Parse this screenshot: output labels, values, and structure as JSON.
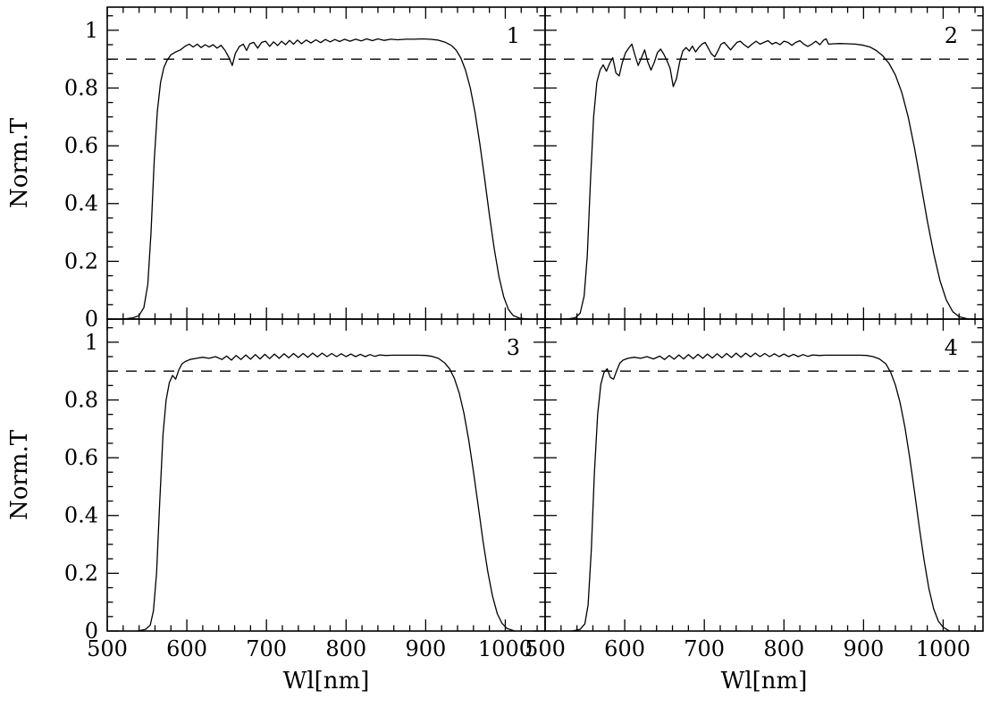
{
  "figure": {
    "background": "#ffffff",
    "axis_color": "#000000",
    "curve_color": "#000000",
    "dashed_color": "#000000",
    "xlabel": "Wl[nm]",
    "ylabel": "Norm.T"
  },
  "axes": {
    "xlim": [
      500,
      1050
    ],
    "ylim": [
      0,
      1.08
    ],
    "x_major_ticks": [
      500,
      600,
      700,
      800,
      900,
      1000
    ],
    "x_tick_labels": [
      "500",
      "600",
      "700",
      "800",
      "900",
      "1000"
    ],
    "x_minor_step": 20,
    "y_major_ticks": [
      0,
      0.2,
      0.4,
      0.6,
      0.8,
      1
    ],
    "y_tick_labels": [
      "0",
      "0.2",
      "0.4",
      "0.6",
      "0.8",
      "1"
    ],
    "y_minor_step": 0.05,
    "grid": false
  },
  "chart_data": [
    {
      "type": "line",
      "panel_label": "1",
      "row": 0,
      "col": 0,
      "xlabel": "Wl[nm]",
      "ylabel": "Norm.T",
      "xlim": [
        500,
        1050
      ],
      "ylim": [
        0,
        1.08
      ],
      "dashed_line_y": 0.9,
      "points": [
        [
          520,
          0
        ],
        [
          532,
          0.004
        ],
        [
          540,
          0.012
        ],
        [
          546,
          0.04
        ],
        [
          551,
          0.12
        ],
        [
          555,
          0.3
        ],
        [
          559,
          0.55
        ],
        [
          563,
          0.72
        ],
        [
          567,
          0.82
        ],
        [
          571,
          0.87
        ],
        [
          575,
          0.895
        ],
        [
          580,
          0.915
        ],
        [
          586,
          0.925
        ],
        [
          592,
          0.932
        ],
        [
          598,
          0.945
        ],
        [
          603,
          0.952
        ],
        [
          608,
          0.942
        ],
        [
          613,
          0.952
        ],
        [
          618,
          0.94
        ],
        [
          623,
          0.95
        ],
        [
          628,
          0.942
        ],
        [
          633,
          0.95
        ],
        [
          638,
          0.938
        ],
        [
          643,
          0.948
        ],
        [
          648,
          0.93
        ],
        [
          653,
          0.905
        ],
        [
          657,
          0.878
        ],
        [
          661,
          0.92
        ],
        [
          666,
          0.944
        ],
        [
          671,
          0.952
        ],
        [
          675,
          0.93
        ],
        [
          679,
          0.953
        ],
        [
          684,
          0.958
        ],
        [
          689,
          0.938
        ],
        [
          694,
          0.958
        ],
        [
          699,
          0.962
        ],
        [
          704,
          0.944
        ],
        [
          709,
          0.96
        ],
        [
          714,
          0.947
        ],
        [
          719,
          0.962
        ],
        [
          724,
          0.95
        ],
        [
          729,
          0.965
        ],
        [
          734,
          0.952
        ],
        [
          739,
          0.966
        ],
        [
          744,
          0.953
        ],
        [
          750,
          0.966
        ],
        [
          756,
          0.956
        ],
        [
          762,
          0.967
        ],
        [
          768,
          0.957
        ],
        [
          774,
          0.968
        ],
        [
          780,
          0.96
        ],
        [
          786,
          0.968
        ],
        [
          792,
          0.961
        ],
        [
          798,
          0.969
        ],
        [
          805,
          0.962
        ],
        [
          812,
          0.969
        ],
        [
          819,
          0.963
        ],
        [
          826,
          0.97
        ],
        [
          833,
          0.964
        ],
        [
          840,
          0.97
        ],
        [
          848,
          0.965
        ],
        [
          856,
          0.969
        ],
        [
          865,
          0.967
        ],
        [
          875,
          0.969
        ],
        [
          885,
          0.969
        ],
        [
          895,
          0.97
        ],
        [
          905,
          0.969
        ],
        [
          915,
          0.966
        ],
        [
          925,
          0.958
        ],
        [
          932,
          0.948
        ],
        [
          938,
          0.932
        ],
        [
          944,
          0.905
        ],
        [
          950,
          0.862
        ],
        [
          956,
          0.8
        ],
        [
          962,
          0.715
        ],
        [
          968,
          0.608
        ],
        [
          974,
          0.487
        ],
        [
          980,
          0.362
        ],
        [
          986,
          0.245
        ],
        [
          992,
          0.148
        ],
        [
          998,
          0.077
        ],
        [
          1004,
          0.033
        ],
        [
          1010,
          0.012
        ],
        [
          1018,
          0.003
        ],
        [
          1030,
          0
        ]
      ]
    },
    {
      "type": "line",
      "panel_label": "2",
      "row": 0,
      "col": 1,
      "xlabel": "Wl[nm]",
      "ylabel": "Norm.T",
      "xlim": [
        500,
        1050
      ],
      "ylim": [
        0,
        1.08
      ],
      "dashed_line_y": 0.9,
      "points": [
        [
          528,
          0
        ],
        [
          538,
          0.005
        ],
        [
          544,
          0.02
        ],
        [
          549,
          0.08
        ],
        [
          553,
          0.22
        ],
        [
          557,
          0.48
        ],
        [
          561,
          0.7
        ],
        [
          565,
          0.82
        ],
        [
          569,
          0.862
        ],
        [
          573,
          0.88
        ],
        [
          577,
          0.858
        ],
        [
          581,
          0.885
        ],
        [
          585,
          0.905
        ],
        [
          589,
          0.852
        ],
        [
          593,
          0.842
        ],
        [
          597,
          0.888
        ],
        [
          601,
          0.922
        ],
        [
          605,
          0.938
        ],
        [
          609,
          0.952
        ],
        [
          613,
          0.912
        ],
        [
          617,
          0.878
        ],
        [
          621,
          0.905
        ],
        [
          625,
          0.932
        ],
        [
          629,
          0.89
        ],
        [
          633,
          0.862
        ],
        [
          637,
          0.888
        ],
        [
          641,
          0.922
        ],
        [
          645,
          0.935
        ],
        [
          649,
          0.918
        ],
        [
          653,
          0.895
        ],
        [
          657,
          0.868
        ],
        [
          661,
          0.805
        ],
        [
          665,
          0.832
        ],
        [
          669,
          0.89
        ],
        [
          673,
          0.928
        ],
        [
          677,
          0.94
        ],
        [
          681,
          0.928
        ],
        [
          685,
          0.945
        ],
        [
          689,
          0.925
        ],
        [
          693,
          0.94
        ],
        [
          697,
          0.952
        ],
        [
          701,
          0.958
        ],
        [
          705,
          0.938
        ],
        [
          709,
          0.918
        ],
        [
          713,
          0.908
        ],
        [
          717,
          0.928
        ],
        [
          721,
          0.952
        ],
        [
          725,
          0.958
        ],
        [
          729,
          0.945
        ],
        [
          733,
          0.932
        ],
        [
          737,
          0.945
        ],
        [
          741,
          0.958
        ],
        [
          745,
          0.962
        ],
        [
          750,
          0.95
        ],
        [
          755,
          0.94
        ],
        [
          760,
          0.952
        ],
        [
          765,
          0.962
        ],
        [
          770,
          0.952
        ],
        [
          775,
          0.958
        ],
        [
          780,
          0.964
        ],
        [
          785,
          0.952
        ],
        [
          790,
          0.958
        ],
        [
          795,
          0.95
        ],
        [
          800,
          0.962
        ],
        [
          805,
          0.958
        ],
        [
          810,
          0.948
        ],
        [
          815,
          0.958
        ],
        [
          820,
          0.964
        ],
        [
          825,
          0.952
        ],
        [
          830,
          0.944
        ],
        [
          835,
          0.952
        ],
        [
          840,
          0.962
        ],
        [
          845,
          0.95
        ],
        [
          850,
          0.966
        ],
        [
          853,
          0.97
        ],
        [
          856,
          0.952
        ],
        [
          862,
          0.953
        ],
        [
          870,
          0.954
        ],
        [
          880,
          0.953
        ],
        [
          890,
          0.952
        ],
        [
          900,
          0.948
        ],
        [
          908,
          0.942
        ],
        [
          916,
          0.93
        ],
        [
          924,
          0.912
        ],
        [
          932,
          0.885
        ],
        [
          940,
          0.845
        ],
        [
          948,
          0.785
        ],
        [
          956,
          0.7
        ],
        [
          964,
          0.592
        ],
        [
          972,
          0.468
        ],
        [
          980,
          0.342
        ],
        [
          988,
          0.228
        ],
        [
          996,
          0.133
        ],
        [
          1004,
          0.066
        ],
        [
          1012,
          0.026
        ],
        [
          1020,
          0.008
        ],
        [
          1032,
          0
        ]
      ]
    },
    {
      "type": "line",
      "panel_label": "3",
      "row": 1,
      "col": 0,
      "xlabel": "Wl[nm]",
      "ylabel": "Norm.T",
      "xlim": [
        500,
        1050
      ],
      "ylim": [
        0,
        1.08
      ],
      "dashed_line_y": 0.9,
      "points": [
        [
          538,
          0
        ],
        [
          548,
          0.006
        ],
        [
          554,
          0.02
        ],
        [
          558,
          0.07
        ],
        [
          562,
          0.2
        ],
        [
          566,
          0.45
        ],
        [
          570,
          0.68
        ],
        [
          574,
          0.8
        ],
        [
          578,
          0.86
        ],
        [
          582,
          0.885
        ],
        [
          586,
          0.872
        ],
        [
          590,
          0.905
        ],
        [
          594,
          0.925
        ],
        [
          598,
          0.933
        ],
        [
          604,
          0.94
        ],
        [
          612,
          0.944
        ],
        [
          620,
          0.948
        ],
        [
          628,
          0.944
        ],
        [
          636,
          0.95
        ],
        [
          644,
          0.94
        ],
        [
          650,
          0.952
        ],
        [
          656,
          0.938
        ],
        [
          662,
          0.954
        ],
        [
          668,
          0.94
        ],
        [
          674,
          0.956
        ],
        [
          680,
          0.941
        ],
        [
          686,
          0.957
        ],
        [
          692,
          0.942
        ],
        [
          698,
          0.958
        ],
        [
          704,
          0.943
        ],
        [
          710,
          0.959
        ],
        [
          716,
          0.944
        ],
        [
          722,
          0.96
        ],
        [
          728,
          0.946
        ],
        [
          734,
          0.961
        ],
        [
          740,
          0.947
        ],
        [
          746,
          0.961
        ],
        [
          752,
          0.948
        ],
        [
          758,
          0.962
        ],
        [
          764,
          0.949
        ],
        [
          770,
          0.962
        ],
        [
          776,
          0.95
        ],
        [
          782,
          0.961
        ],
        [
          788,
          0.95
        ],
        [
          794,
          0.96
        ],
        [
          800,
          0.95
        ],
        [
          806,
          0.959
        ],
        [
          812,
          0.95
        ],
        [
          818,
          0.958
        ],
        [
          824,
          0.95
        ],
        [
          830,
          0.957
        ],
        [
          836,
          0.951
        ],
        [
          842,
          0.956
        ],
        [
          850,
          0.954
        ],
        [
          860,
          0.955
        ],
        [
          870,
          0.955
        ],
        [
          880,
          0.955
        ],
        [
          890,
          0.955
        ],
        [
          900,
          0.954
        ],
        [
          908,
          0.951
        ],
        [
          916,
          0.944
        ],
        [
          924,
          0.928
        ],
        [
          930,
          0.908
        ],
        [
          936,
          0.875
        ],
        [
          942,
          0.825
        ],
        [
          948,
          0.755
        ],
        [
          954,
          0.662
        ],
        [
          960,
          0.552
        ],
        [
          966,
          0.432
        ],
        [
          972,
          0.312
        ],
        [
          978,
          0.205
        ],
        [
          984,
          0.12
        ],
        [
          990,
          0.06
        ],
        [
          996,
          0.026
        ],
        [
          1002,
          0.009
        ],
        [
          1012,
          0
        ]
      ]
    },
    {
      "type": "line",
      "panel_label": "4",
      "row": 1,
      "col": 1,
      "xlabel": "Wl[nm]",
      "ylabel": "Norm.T",
      "xlim": [
        500,
        1050
      ],
      "ylim": [
        0,
        1.08
      ],
      "dashed_line_y": 0.9,
      "points": [
        [
          534,
          0
        ],
        [
          544,
          0.006
        ],
        [
          550,
          0.025
        ],
        [
          554,
          0.09
        ],
        [
          558,
          0.28
        ],
        [
          562,
          0.55
        ],
        [
          566,
          0.75
        ],
        [
          570,
          0.855
        ],
        [
          574,
          0.895
        ],
        [
          578,
          0.908
        ],
        [
          582,
          0.878
        ],
        [
          586,
          0.872
        ],
        [
          590,
          0.902
        ],
        [
          594,
          0.928
        ],
        [
          598,
          0.938
        ],
        [
          604,
          0.944
        ],
        [
          612,
          0.948
        ],
        [
          620,
          0.944
        ],
        [
          628,
          0.95
        ],
        [
          636,
          0.942
        ],
        [
          644,
          0.952
        ],
        [
          650,
          0.94
        ],
        [
          656,
          0.954
        ],
        [
          662,
          0.941
        ],
        [
          668,
          0.956
        ],
        [
          674,
          0.942
        ],
        [
          680,
          0.957
        ],
        [
          686,
          0.943
        ],
        [
          692,
          0.958
        ],
        [
          698,
          0.944
        ],
        [
          704,
          0.959
        ],
        [
          710,
          0.945
        ],
        [
          716,
          0.96
        ],
        [
          722,
          0.946
        ],
        [
          728,
          0.961
        ],
        [
          734,
          0.947
        ],
        [
          740,
          0.962
        ],
        [
          746,
          0.948
        ],
        [
          752,
          0.962
        ],
        [
          758,
          0.949
        ],
        [
          764,
          0.962
        ],
        [
          770,
          0.95
        ],
        [
          776,
          0.961
        ],
        [
          782,
          0.95
        ],
        [
          788,
          0.96
        ],
        [
          794,
          0.95
        ],
        [
          800,
          0.959
        ],
        [
          806,
          0.95
        ],
        [
          812,
          0.958
        ],
        [
          818,
          0.95
        ],
        [
          824,
          0.957
        ],
        [
          830,
          0.951
        ],
        [
          836,
          0.956
        ],
        [
          844,
          0.954
        ],
        [
          854,
          0.955
        ],
        [
          864,
          0.955
        ],
        [
          874,
          0.955
        ],
        [
          884,
          0.955
        ],
        [
          894,
          0.955
        ],
        [
          904,
          0.954
        ],
        [
          912,
          0.95
        ],
        [
          920,
          0.942
        ],
        [
          928,
          0.925
        ],
        [
          934,
          0.896
        ],
        [
          940,
          0.852
        ],
        [
          946,
          0.79
        ],
        [
          952,
          0.705
        ],
        [
          958,
          0.6
        ],
        [
          964,
          0.482
        ],
        [
          970,
          0.36
        ],
        [
          976,
          0.245
        ],
        [
          982,
          0.148
        ],
        [
          988,
          0.077
        ],
        [
          994,
          0.034
        ],
        [
          1000,
          0.013
        ],
        [
          1008,
          0
        ]
      ]
    }
  ]
}
